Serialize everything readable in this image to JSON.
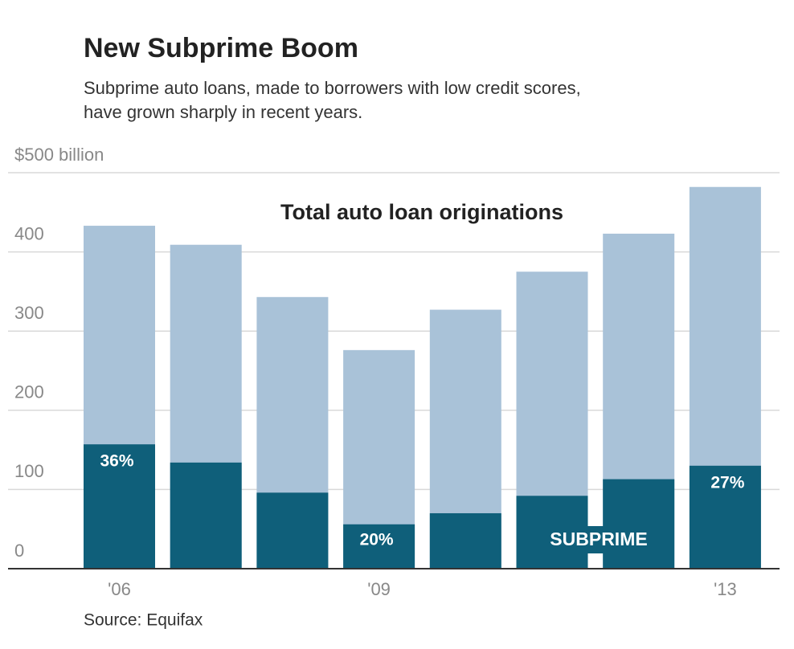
{
  "chart_data": {
    "type": "bar",
    "title": "New Subprime Boom",
    "subtitle_lines": [
      "Subprime auto loans, made to borrowers with low credit scores,",
      "have grown sharply in recent years."
    ],
    "source": "Source: Equifax",
    "categories": [
      "'06",
      null,
      null,
      "'09",
      null,
      null,
      null,
      "'13"
    ],
    "series": [
      {
        "name": "Total auto loan originations",
        "color": "#a9c2d8",
        "values": [
          433,
          409,
          343,
          276,
          327,
          375,
          423,
          482
        ]
      },
      {
        "name": "SUBPRIME",
        "color": "#0f5f7a",
        "values": [
          157,
          134,
          96,
          56,
          70,
          92,
          113,
          130
        ]
      }
    ],
    "share_labels": [
      "36%",
      null,
      null,
      "20%",
      null,
      null,
      null,
      "27%"
    ],
    "ylim": [
      0,
      500
    ],
    "yticks": [
      0,
      100,
      200,
      300,
      400,
      {
        "value": 500,
        "label": "$500 billion"
      }
    ],
    "grid": true
  }
}
